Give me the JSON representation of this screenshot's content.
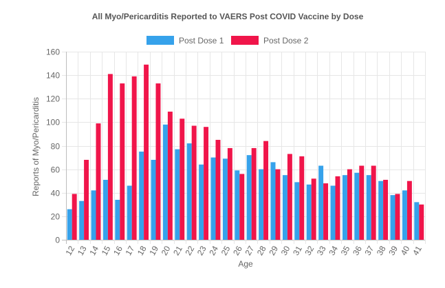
{
  "chart_data": {
    "type": "bar",
    "title": "All Myo/Pericarditis Reported to VAERS Post COVID Vaccine by Dose",
    "xlabel": "Age",
    "ylabel": "Reports of Myo/Pericarditis",
    "ylim": [
      0,
      160
    ],
    "yticks": [
      0,
      20,
      40,
      60,
      80,
      100,
      120,
      140,
      160
    ],
    "grid": true,
    "legend_position": "top",
    "categories": [
      "12",
      "13",
      "14",
      "15",
      "16",
      "17",
      "18",
      "19",
      "20",
      "21",
      "22",
      "23",
      "24",
      "25",
      "26",
      "27",
      "28",
      "29",
      "30",
      "31",
      "32",
      "33",
      "34",
      "35",
      "36",
      "37",
      "38",
      "39",
      "40",
      "41"
    ],
    "series": [
      {
        "name": "Post Dose 1",
        "color": "#36a2eb",
        "values": [
          26,
          33,
          42,
          51,
          34,
          46,
          75,
          68,
          98,
          77,
          82,
          64,
          70,
          69,
          59,
          72,
          60,
          66,
          55,
          49,
          47,
          63,
          46,
          55,
          57,
          55,
          50,
          38,
          42,
          32
        ]
      },
      {
        "name": "Post Dose 2",
        "color": "#f0154a",
        "values": [
          39,
          68,
          99,
          141,
          133,
          139,
          149,
          133,
          109,
          103,
          97,
          96,
          85,
          78,
          56,
          78,
          84,
          60,
          73,
          71,
          52,
          48,
          54,
          60,
          63,
          63,
          51,
          39,
          50,
          30
        ]
      }
    ]
  }
}
